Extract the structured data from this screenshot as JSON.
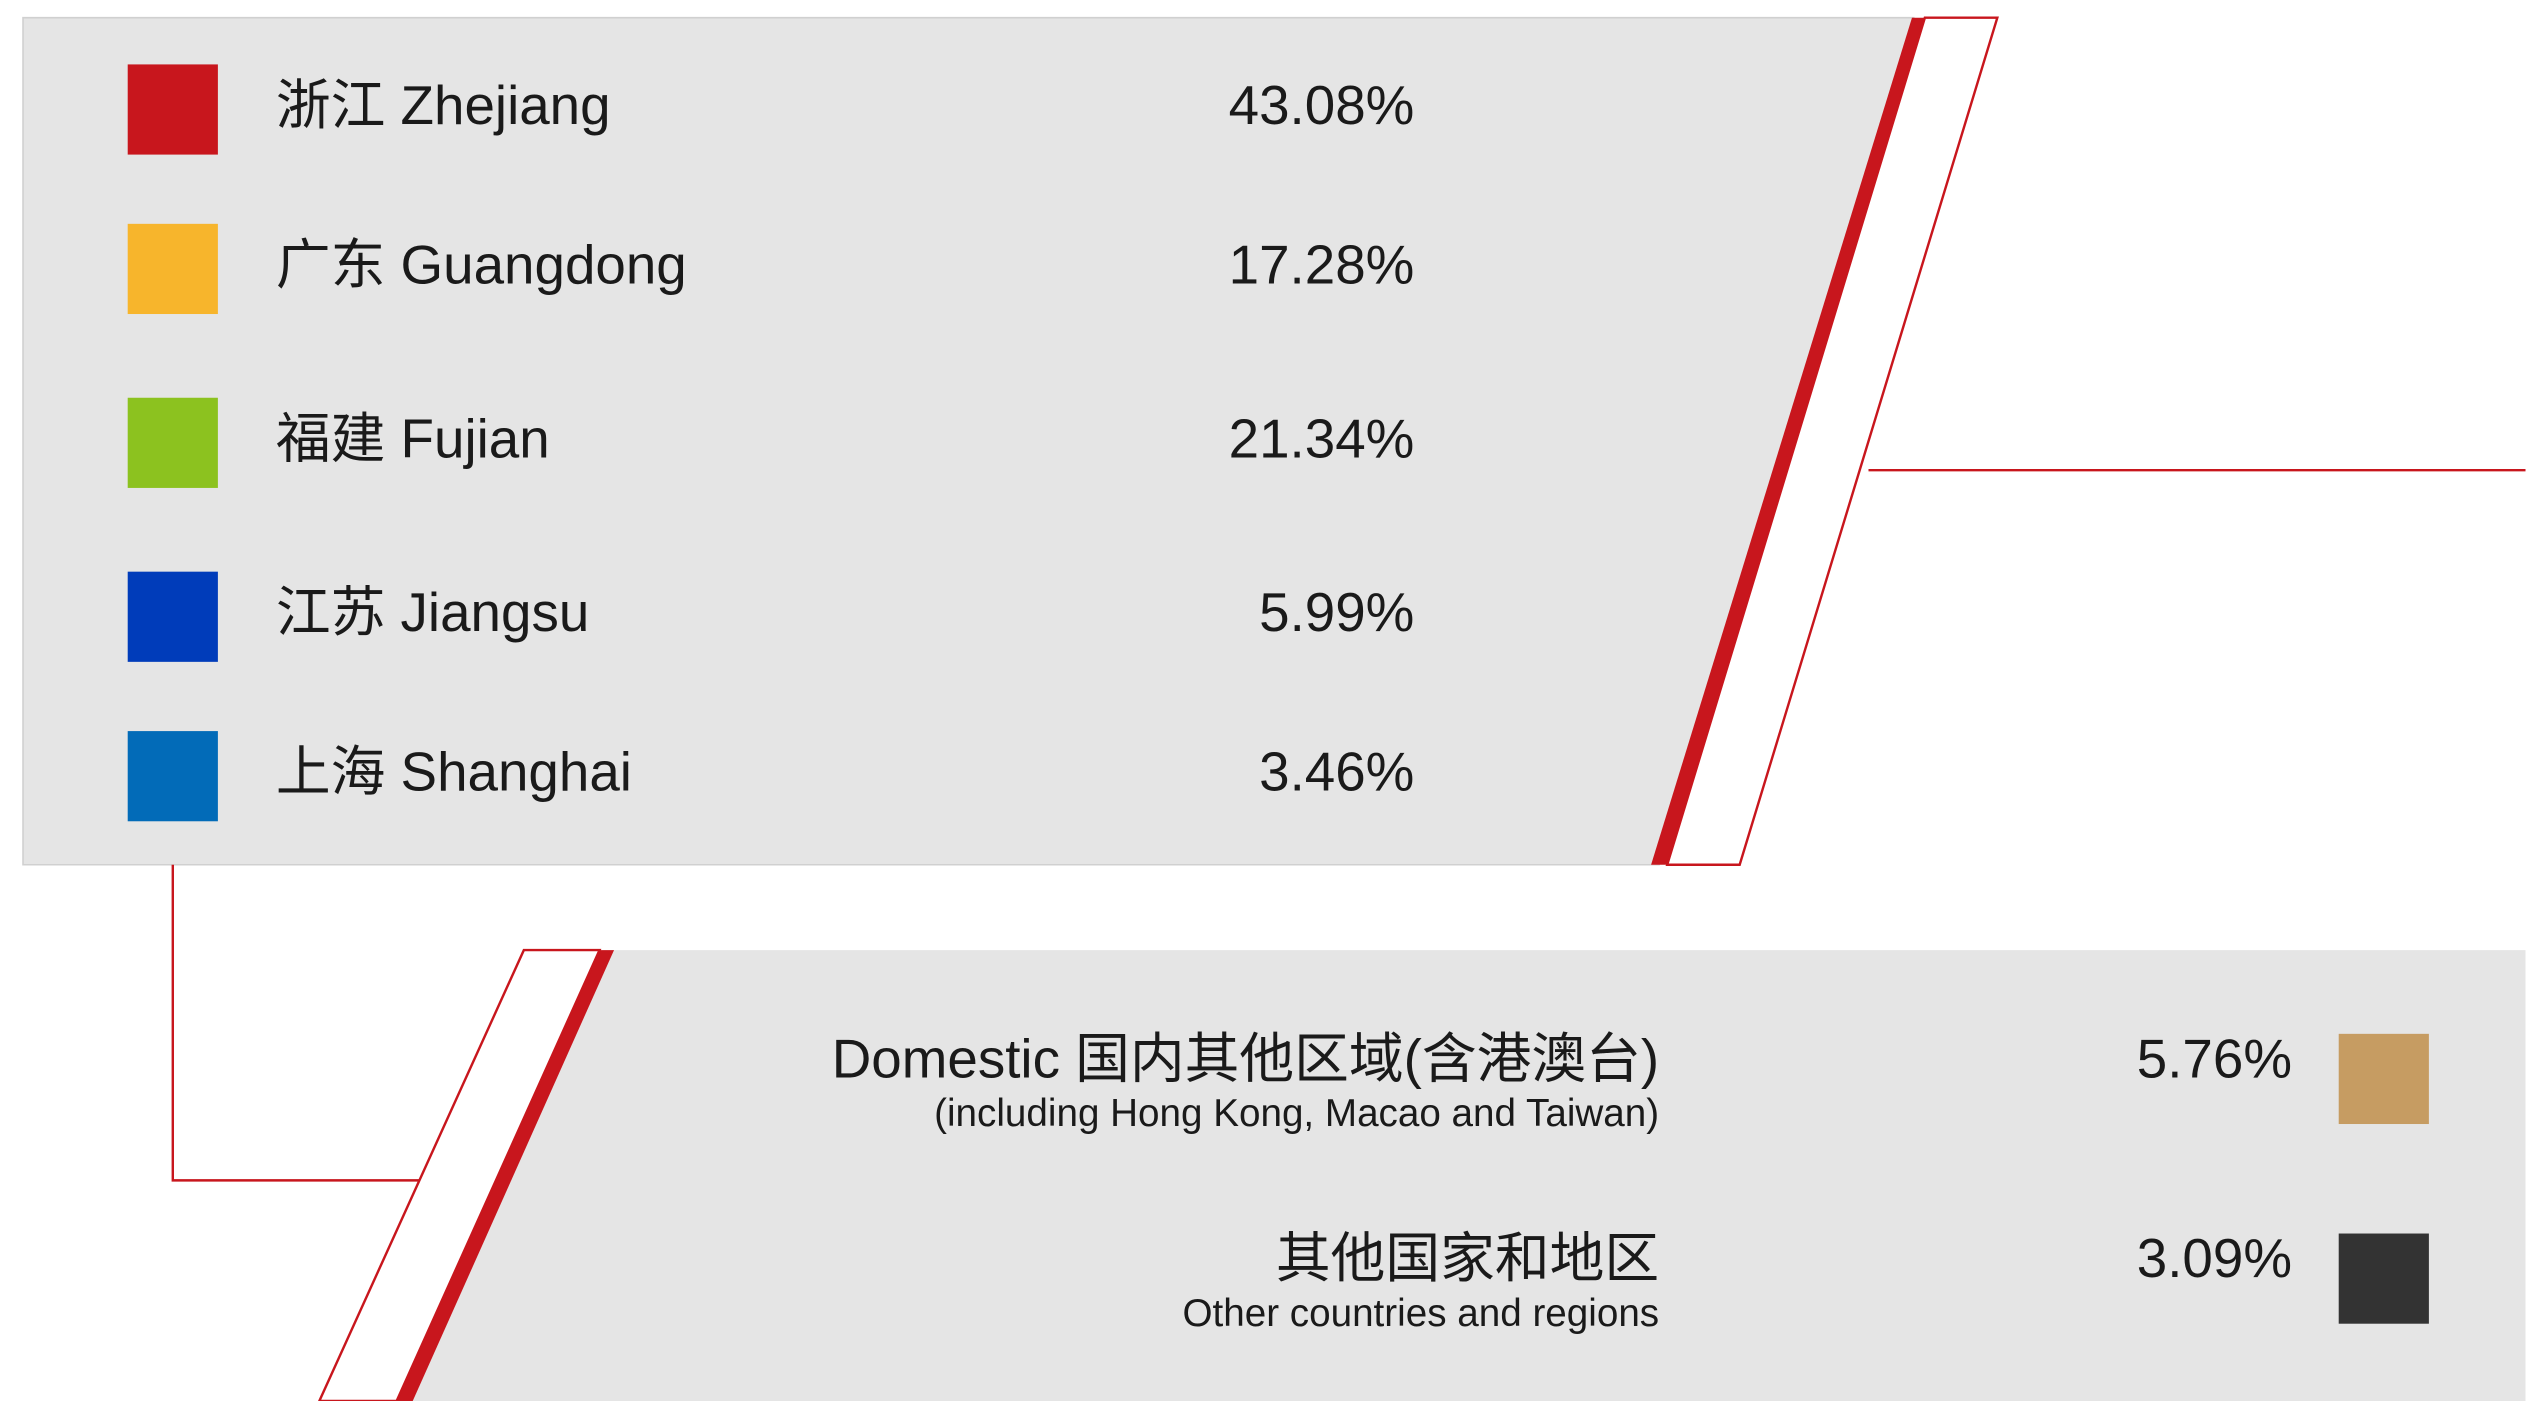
{
  "top_items": [
    {
      "label": "浙江 Zhejiang",
      "value": "43.08%",
      "color": "#c8161d"
    },
    {
      "label": "广东 Guangdong",
      "value": "17.28%",
      "color": "#f7b52c"
    },
    {
      "label": "福建 Fujian",
      "value": "21.34%",
      "color": "#8cc21f"
    },
    {
      "label": "江苏 Jiangsu",
      "value": "5.99%",
      "color": "#003cba"
    },
    {
      "label": "上海 Shanghai",
      "value": "3.46%",
      "color": "#026bb8"
    }
  ],
  "bottom_items": [
    {
      "label": "Domestic 国内其他区域(含港澳台)",
      "sublabel": "(including Hong Kong, Macao and Taiwan)",
      "value": "5.76%",
      "color": "#c69c62"
    },
    {
      "label": "其他国家和地区",
      "sublabel": "Other countries and regions",
      "value": "3.09%",
      "color": "#333333"
    }
  ]
}
